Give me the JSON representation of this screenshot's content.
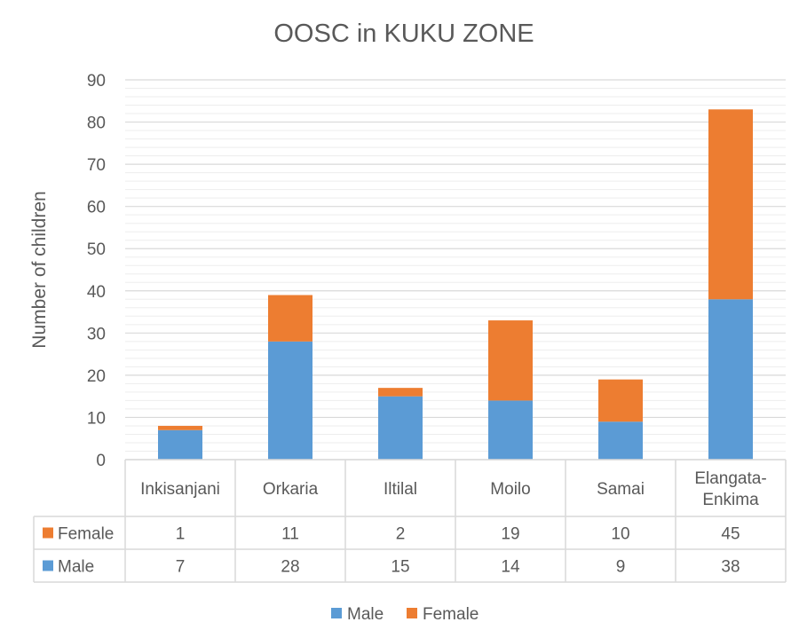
{
  "chart_data": {
    "type": "bar",
    "stacked": true,
    "title": "OOSC in KUKU ZONE",
    "ylabel": "Number of children",
    "xlabel": "",
    "ylim": [
      0,
      90
    ],
    "yticks": [
      0,
      10,
      20,
      30,
      40,
      50,
      60,
      70,
      80,
      90
    ],
    "grid": true,
    "legend_position": "bottom",
    "categories": [
      [
        "Inkisanjani"
      ],
      [
        "Orkaria"
      ],
      [
        "Iltilal"
      ],
      [
        "Moilo"
      ],
      [
        "Samai"
      ],
      [
        "Elangata-",
        "Enkima"
      ]
    ],
    "series": [
      {
        "name": "Male",
        "color": "#5B9BD5",
        "values": [
          7,
          28,
          15,
          14,
          9,
          38
        ]
      },
      {
        "name": "Female",
        "color": "#ED7D31",
        "values": [
          1,
          11,
          2,
          19,
          10,
          45
        ]
      }
    ],
    "data_table": {
      "row_order": [
        "Female",
        "Male"
      ]
    }
  }
}
